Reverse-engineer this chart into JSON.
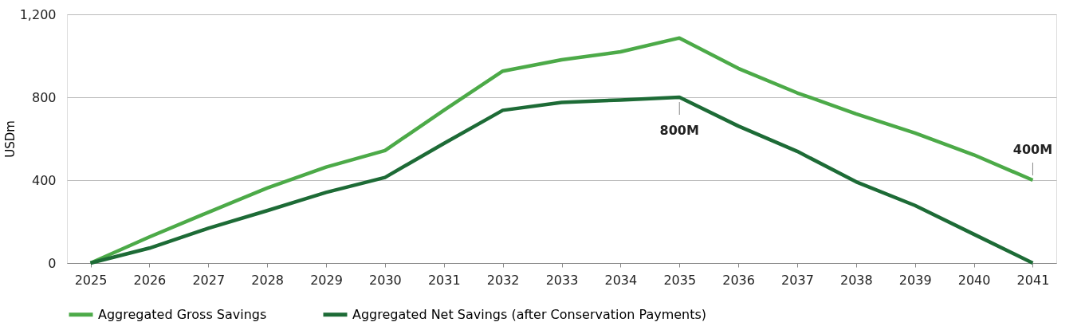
{
  "chart_data": {
    "type": "line",
    "ylabel": "USDm",
    "categories": [
      "2025",
      "2026",
      "2027",
      "2028",
      "2029",
      "2030",
      "2031",
      "2032",
      "2033",
      "2034",
      "2035",
      "2036",
      "2037",
      "2038",
      "2039",
      "2040",
      "2041"
    ],
    "series": [
      {
        "name": "Aggregated Gross Savings",
        "color": "#4caa48",
        "values": [
          0,
          126,
          245,
          362,
          463,
          543,
          737,
          926,
          981,
          1019,
          1086,
          939,
          821,
          720,
          627,
          522,
          400
        ]
      },
      {
        "name": "Aggregated Net Savings (after Conservation Payments)",
        "color": "#1d6b36",
        "values": [
          0,
          72,
          168,
          253,
          341,
          413,
          577,
          737,
          775,
          787,
          800,
          661,
          539,
          392,
          278,
          139,
          0
        ]
      }
    ],
    "ylim": [
      0,
      1200
    ],
    "yticks": [
      0,
      400,
      800,
      {
        "value": 1200,
        "label": "1,200"
      }
    ],
    "grid": "y",
    "legend": "bottom left",
    "marker": "none",
    "line_style": "solid",
    "annotations": [
      {
        "text": "800M",
        "x": "2035",
        "y": 800
      },
      {
        "text": "400M",
        "x": "2041",
        "y": 400
      }
    ]
  }
}
